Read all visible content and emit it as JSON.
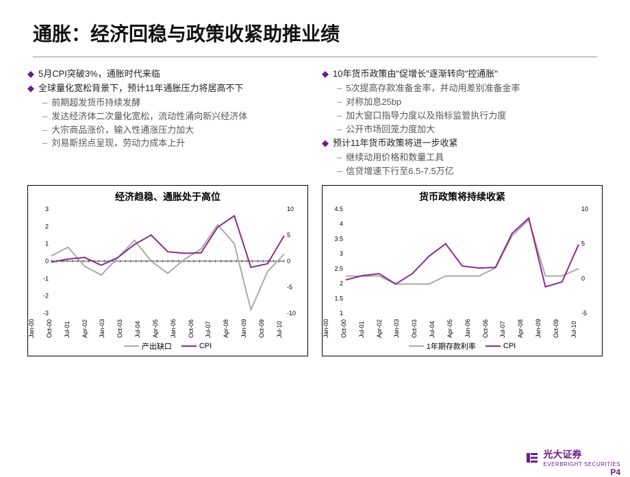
{
  "title": "通胀：经济回稳与政策收紧助推业绩",
  "left": {
    "b1": "5月CPI突破3%，通胀时代来临",
    "b2": "全球量化宽松背景下，预计11年通胀压力将居高不下",
    "s1": "前期超发货币持续发酵",
    "s2": "发达经济体二次量化宽松，流动性涌向新兴经济体",
    "s3": "大宗商品涨价，输入性通涨压力加大",
    "s4": "刘易斯拐点呈现，劳动力成本上升"
  },
  "right": {
    "b1": "10年货币政策由\"促增长\"逐渐转向\"控通胀\"",
    "s1": "5次提高存款准备金率，并动用差别准备金率",
    "s2": "对称加息25bp",
    "s3": "加大窗口指导力度以及指标监管执行力度",
    "s4": "公开市场回笼力度加大",
    "b2": "预计11年货币政策将进一步收紧",
    "s5": "继续动用价格和数量工具",
    "s6": "信贷增速下行至6.5-7.5万亿"
  },
  "chart1": {
    "title": "经济趋稳、通胀处于高位",
    "type": "line-dual-axis",
    "x_labels": [
      "Jan-00",
      "Oct-00",
      "Jul-01",
      "Apr-02",
      "Jan-03",
      "Oct-03",
      "Jul-04",
      "Apr-05",
      "Jan-06",
      "Oct-06",
      "Jul-07",
      "Apr-08",
      "Jan-09",
      "Oct-09",
      "Jul-10"
    ],
    "y_left_ticks": [
      -3,
      -2,
      -1,
      0,
      1,
      2,
      3
    ],
    "y_right_ticks": [
      -10,
      -5,
      0,
      5,
      10
    ],
    "series": {
      "gap": {
        "name": "产出缺口",
        "color": "#aaaaaa",
        "axis": "left",
        "values": [
          0.3,
          0.8,
          -0.3,
          -0.8,
          0.2,
          1.2,
          0.0,
          -0.7,
          0.1,
          0.7,
          2.1,
          1.0,
          -2.8,
          -0.6,
          0.4
        ]
      },
      "cpi": {
        "name": "CPI",
        "color": "#8a2a8f",
        "axis": "right",
        "values": [
          -0.2,
          0.4,
          0.7,
          -0.8,
          0.7,
          3.2,
          5.0,
          1.8,
          1.5,
          1.6,
          6.5,
          8.7,
          -1.2,
          -0.5,
          4.9
        ]
      }
    },
    "background_color": "#ffffff",
    "line_width": 2
  },
  "chart2": {
    "title": "货币政策将持续收紧",
    "type": "line-dual-axis",
    "x_labels": [
      "Jan-00",
      "Oct-00",
      "Jul-01",
      "Apr-02",
      "Jan-03",
      "Oct-03",
      "Jul-04",
      "Apr-05",
      "Jan-06",
      "Oct-06",
      "Jul-07",
      "Apr-08",
      "Jan-09",
      "Oct-09",
      "Jul-10"
    ],
    "y_left_ticks": [
      1.0,
      1.5,
      2.0,
      2.5,
      3.0,
      3.5,
      4.0,
      4.5
    ],
    "y_right_ticks": [
      -5,
      0,
      5,
      10
    ],
    "series": {
      "rate": {
        "name": "1年期存款利率",
        "color": "#aaaaaa",
        "axis": "left",
        "values": [
          2.25,
          2.25,
          2.25,
          1.98,
          1.98,
          1.98,
          2.25,
          2.25,
          2.25,
          2.52,
          3.6,
          4.14,
          2.25,
          2.25,
          2.5
        ]
      },
      "cpi": {
        "name": "CPI",
        "color": "#8a2a8f",
        "axis": "right",
        "values": [
          -0.2,
          0.4,
          0.7,
          -0.8,
          0.7,
          3.2,
          5.0,
          1.8,
          1.5,
          1.6,
          6.5,
          8.7,
          -1.2,
          -0.5,
          4.9
        ]
      }
    },
    "background_color": "#ffffff",
    "line_width": 2
  },
  "footer": {
    "brand_cn": "光大证券",
    "brand_en": "EVERBRIGHT SECURITIES",
    "page": "P4"
  },
  "colors": {
    "accent": "#6b1b87",
    "grid": "#e0e0e0",
    "text": "#222222"
  }
}
